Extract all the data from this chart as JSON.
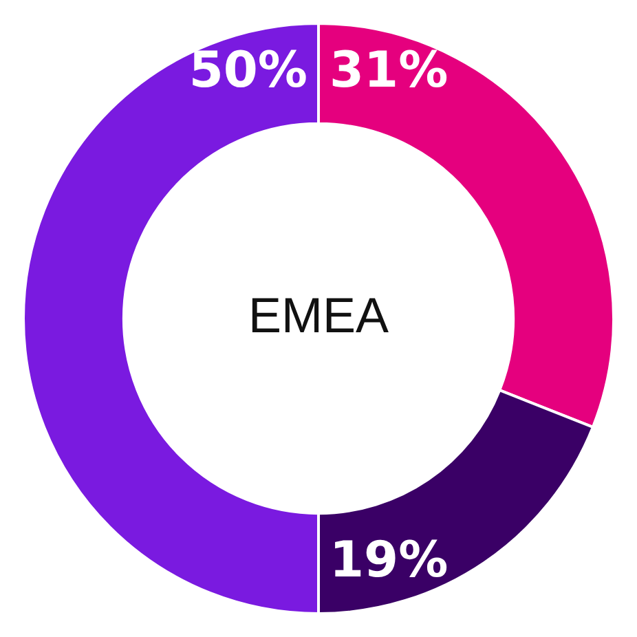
{
  "chart_data": {
    "type": "donut",
    "title": "EMEA",
    "categories": [
      null,
      null,
      null
    ],
    "values": [
      31,
      19,
      50
    ],
    "colors": [
      "#e5007e",
      "#3a0066",
      "#7a1ae0"
    ],
    "value_labels": [
      "31%",
      "19%",
      "50%"
    ],
    "legend": false
  }
}
